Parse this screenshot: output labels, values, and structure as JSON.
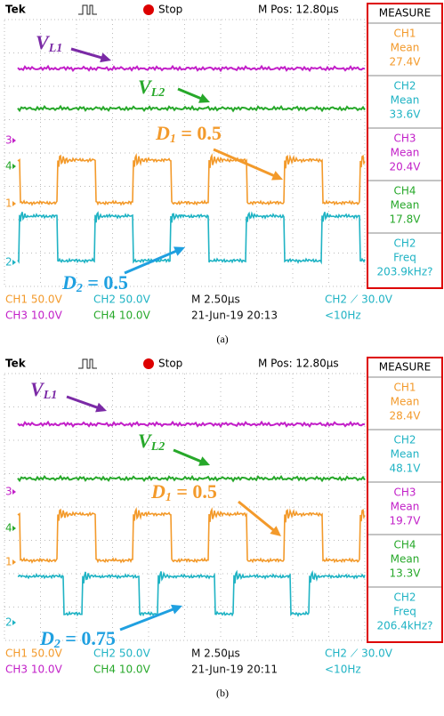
{
  "panels": [
    {
      "header": {
        "brand": "Tek",
        "status": "Stop",
        "position": "M Pos: 12.80µs"
      },
      "measure": {
        "title": "MEASURE",
        "items": [
          {
            "channel": "CH1",
            "stat": "Mean",
            "value": "27.4V"
          },
          {
            "channel": "CH2",
            "stat": "Mean",
            "value": "33.6V"
          },
          {
            "channel": "CH3",
            "stat": "Mean",
            "value": "20.4V"
          },
          {
            "channel": "CH4",
            "stat": "Mean",
            "value": "17.8V"
          },
          {
            "channel": "CH2",
            "stat": "Freq",
            "value": "203.9kHz?"
          }
        ]
      },
      "channel_markers": [
        "3",
        "4",
        "1",
        "2"
      ],
      "annotations": [
        {
          "text": "V",
          "sub": "L1"
        },
        {
          "text": "V",
          "sub": "L2"
        },
        {
          "text": "D",
          "sub": "1",
          "rest": " = 0.5"
        },
        {
          "text": "D",
          "sub": "2",
          "rest": " = 0.5"
        }
      ],
      "footer": [
        [
          "CH1  50.0V",
          "CH2  50.0V",
          "M 2.50µs",
          "CH2 ⟋ 30.0V"
        ],
        [
          "CH3  10.0V",
          "CH4  10.0V",
          "21-Jun-19 20:13",
          "<10Hz"
        ]
      ],
      "caption": "(a)"
    },
    {
      "header": {
        "brand": "Tek",
        "status": "Stop",
        "position": "M Pos: 12.80µs"
      },
      "measure": {
        "title": "MEASURE",
        "items": [
          {
            "channel": "CH1",
            "stat": "Mean",
            "value": "28.4V"
          },
          {
            "channel": "CH2",
            "stat": "Mean",
            "value": "48.1V"
          },
          {
            "channel": "CH3",
            "stat": "Mean",
            "value": "19.7V"
          },
          {
            "channel": "CH4",
            "stat": "Mean",
            "value": "13.3V"
          },
          {
            "channel": "CH2",
            "stat": "Freq",
            "value": "206.4kHz?"
          }
        ]
      },
      "channel_markers": [
        "3",
        "4",
        "1",
        "2"
      ],
      "annotations": [
        {
          "text": "V",
          "sub": "L1"
        },
        {
          "text": "V",
          "sub": "L2"
        },
        {
          "text": "D",
          "sub": "1",
          "rest": " = 0.5"
        },
        {
          "text": "D",
          "sub": "2",
          "rest": " = 0.75"
        }
      ],
      "footer": [
        [
          "CH1  50.0V",
          "CH2  50.0V",
          "M 2.50µs",
          "CH2 ⟋ 30.0V"
        ],
        [
          "CH3  10.0V",
          "CH4  10.0V",
          "21-Jun-19 20:11",
          "<10Hz"
        ]
      ],
      "caption": "(b)"
    }
  ]
}
